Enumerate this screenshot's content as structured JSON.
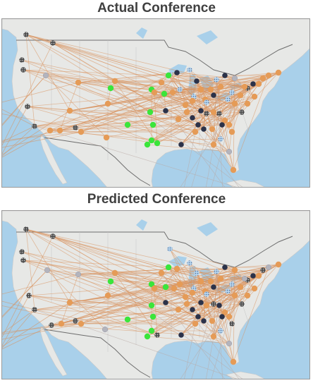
{
  "figure": {
    "title_top": "Actual Conference",
    "title_bottom": "Predicted Conference"
  },
  "colors": {
    "ocean": "#a9d0ea",
    "land": "#e7e8e6",
    "border": "#6d6d6d",
    "edge": "#d9915c",
    "edge_far": "#b9a9a3",
    "orange": "#e59b57",
    "green": "#3be53b",
    "navy": "#2b3249",
    "patterned_dark": "#4a4a4a",
    "light_blue": "#b8d6ee",
    "gray": "#b3b4bd"
  },
  "node_classes": [
    "orange",
    "green",
    "navy",
    "patterned-dark",
    "patterned-light",
    "gray"
  ]
}
